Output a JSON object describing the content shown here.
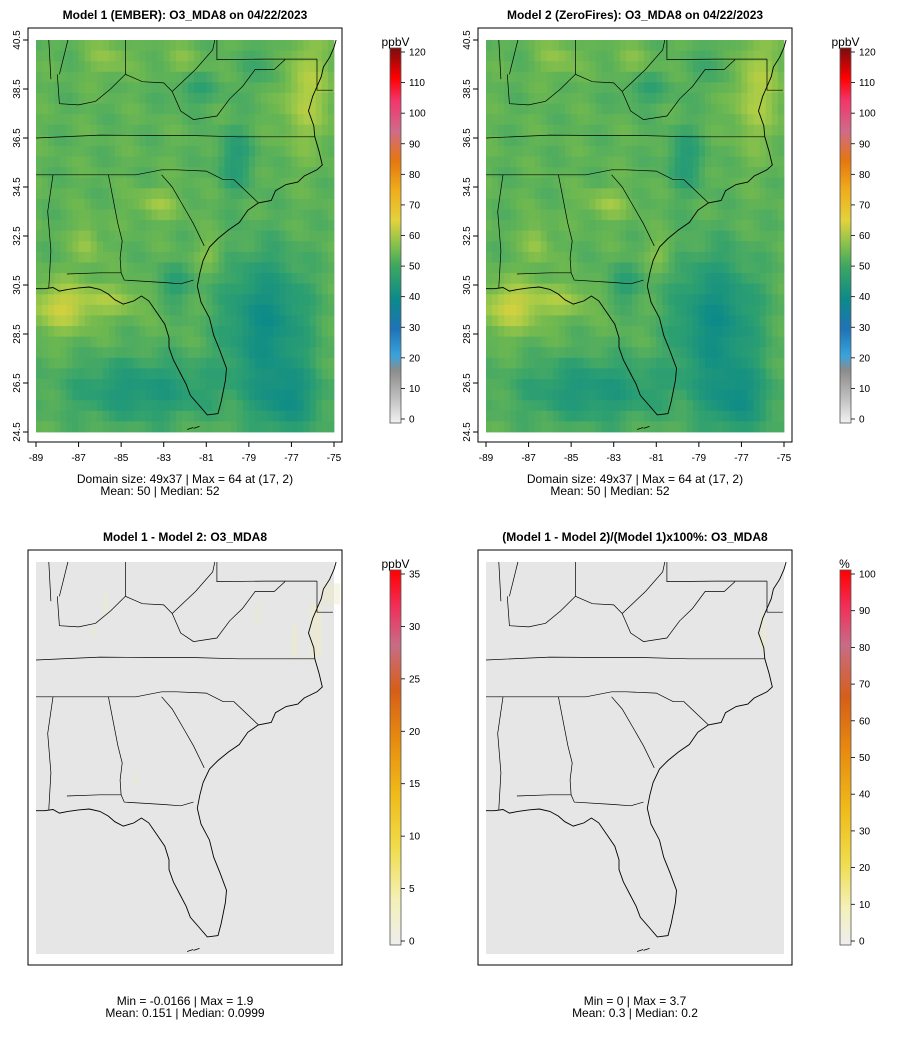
{
  "chart_data": [
    {
      "type": "heatmap",
      "title": "Model 1 (EMBER): O3_MDA8 on 04/22/2023",
      "colorbar_label": "ppbV",
      "colorbar_ticks": [
        0,
        10,
        20,
        30,
        40,
        50,
        60,
        70,
        80,
        90,
        100,
        110,
        120
      ],
      "colorbar_range": [
        0,
        120
      ],
      "xticks": [
        "-89",
        "-87",
        "-85",
        "-83",
        "-81",
        "-79",
        "-77",
        "-75"
      ],
      "yticks": [
        "24.5",
        "26.5",
        "28.5",
        "30.5",
        "32.5",
        "34.5",
        "36.5",
        "38.5",
        "40.5"
      ],
      "xlim": [
        -89,
        -75
      ],
      "ylim": [
        24.5,
        40.5
      ],
      "stats_line1": "Domain size: 49x37 | Max = 64 at (17, 2)",
      "stats_line2": "Mean: 50 |  Median: 52",
      "grid_size": [
        37,
        49
      ],
      "field": "ozone"
    },
    {
      "type": "heatmap",
      "title": "Model 2 (ZeroFires): O3_MDA8 on 04/22/2023",
      "colorbar_label": "ppbV",
      "colorbar_ticks": [
        0,
        10,
        20,
        30,
        40,
        50,
        60,
        70,
        80,
        90,
        100,
        110,
        120
      ],
      "colorbar_range": [
        0,
        120
      ],
      "xticks": [
        "-89",
        "-87",
        "-85",
        "-83",
        "-81",
        "-79",
        "-77",
        "-75"
      ],
      "yticks": [
        "24.5",
        "26.5",
        "28.5",
        "30.5",
        "32.5",
        "34.5",
        "36.5",
        "38.5",
        "40.5"
      ],
      "xlim": [
        -89,
        -75
      ],
      "ylim": [
        24.5,
        40.5
      ],
      "stats_line1": "Domain size: 49x37 | Max = 64 at (17, 2)",
      "stats_line2": "Mean: 50 |  Median: 52",
      "grid_size": [
        37,
        49
      ],
      "field": "ozone"
    },
    {
      "type": "heatmap",
      "title": "Model 1 - Model 2: O3_MDA8",
      "colorbar_label": "ppbV",
      "colorbar_ticks": [
        0,
        5,
        10,
        15,
        20,
        25,
        30,
        35
      ],
      "colorbar_range": [
        0,
        35
      ],
      "stats_line1": "Min = -0.0166 | Max = 1.9",
      "stats_line2": "Mean: 0.151 |  Median: 0.0999",
      "grid_size": [
        37,
        49
      ],
      "field": "difference"
    },
    {
      "type": "heatmap",
      "title": "(Model 1 - Model 2)/(Model 1)x100%: O3_MDA8",
      "colorbar_label": "%",
      "colorbar_ticks": [
        0,
        10,
        20,
        30,
        40,
        50,
        60,
        70,
        80,
        90,
        100
      ],
      "colorbar_range": [
        0,
        100
      ],
      "stats_line1": "Min = 0 | Max = 3.7",
      "stats_line2": "Mean: 0.3 |  Median: 0.2",
      "grid_size": [
        37,
        49
      ],
      "field": "percent"
    }
  ],
  "colors": {
    "ozone_scale": [
      "#dcdcdc",
      "#a9a9a9",
      "#2e9ad6",
      "#1f73b7",
      "#0a8a8a",
      "#3ea85f",
      "#8cc34b",
      "#e3d23c",
      "#f0ad1c",
      "#ff7a00",
      "#ef5f8e",
      "#ff0000",
      "#7a0d0d"
    ],
    "diff_scale": [
      "#e6e6e6",
      "#f4f1c0",
      "#f1e15a",
      "#f0c020",
      "#eb9410",
      "#e06a10",
      "#d34a20",
      "#c66b8e",
      "#f0264a",
      "#ff0000"
    ],
    "map_background": "#e6e6e6",
    "lines": "#000000"
  }
}
